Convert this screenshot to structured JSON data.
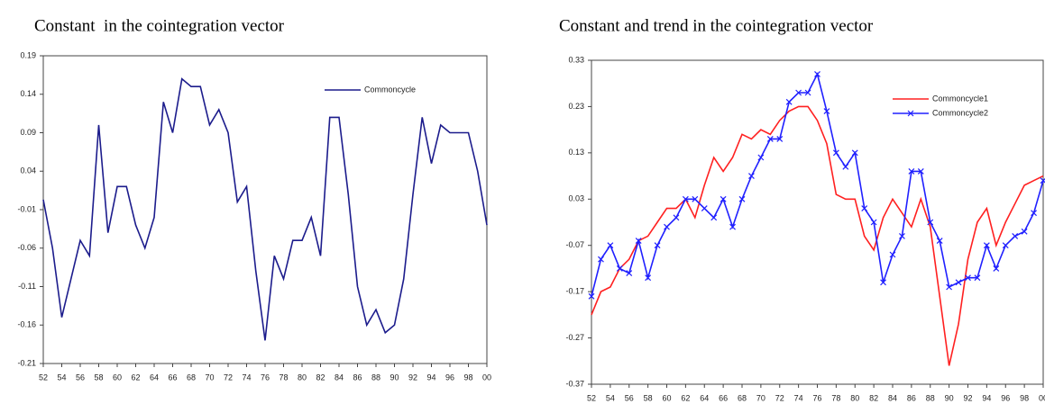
{
  "chart_data": [
    {
      "type": "line",
      "title": "Constant  in the cointegration vector",
      "x": [
        52,
        53,
        54,
        55,
        56,
        57,
        58,
        59,
        60,
        61,
        62,
        63,
        64,
        65,
        66,
        67,
        68,
        69,
        70,
        71,
        72,
        73,
        74,
        75,
        76,
        77,
        78,
        79,
        80,
        81,
        82,
        83,
        84,
        85,
        86,
        87,
        88,
        89,
        90,
        91,
        92,
        93,
        94,
        95,
        96,
        97,
        98,
        99,
        100
      ],
      "series": [
        {
          "name": "Commoncycle",
          "color": "#1c1c8c",
          "values": [
            0.003,
            -0.06,
            -0.15,
            -0.1,
            -0.05,
            -0.07,
            0.1,
            -0.04,
            0.02,
            0.02,
            -0.03,
            -0.06,
            -0.02,
            0.13,
            0.09,
            0.16,
            0.15,
            0.15,
            0.1,
            0.12,
            0.09,
            0.0,
            0.02,
            -0.09,
            -0.18,
            -0.07,
            -0.1,
            -0.05,
            -0.05,
            -0.02,
            -0.07,
            0.11,
            0.11,
            0.01,
            -0.11,
            -0.16,
            -0.14,
            -0.17,
            -0.16,
            -0.1,
            0.01,
            0.11,
            0.05,
            0.1,
            0.09,
            0.09,
            0.09,
            0.04,
            -0.03
          ]
        }
      ],
      "xlim": [
        52,
        100
      ],
      "xticks": [
        52,
        54,
        56,
        58,
        60,
        62,
        64,
        66,
        68,
        70,
        72,
        74,
        76,
        78,
        80,
        82,
        84,
        86,
        88,
        90,
        92,
        94,
        96,
        98,
        {
          "value": 100,
          "label": "00"
        }
      ],
      "ylim": [
        -0.21,
        0.19
      ],
      "yticks": [
        -0.21,
        -0.16,
        -0.11,
        -0.06,
        -0.01,
        0.04,
        0.09,
        0.14,
        0.19
      ],
      "legend": "upper right"
    },
    {
      "type": "line",
      "title": "Constant and trend in the cointegration vector",
      "x": [
        52,
        53,
        54,
        55,
        56,
        57,
        58,
        59,
        60,
        61,
        62,
        63,
        64,
        65,
        66,
        67,
        68,
        69,
        70,
        71,
        72,
        73,
        74,
        75,
        76,
        77,
        78,
        79,
        80,
        81,
        82,
        83,
        84,
        85,
        86,
        87,
        88,
        89,
        90,
        91,
        92,
        93,
        94,
        95,
        96,
        97,
        98,
        99,
        100
      ],
      "series": [
        {
          "name": "Commoncycle1",
          "color": "#ff2020",
          "values": [
            -0.22,
            -0.17,
            -0.16,
            -0.12,
            -0.1,
            -0.06,
            -0.05,
            -0.02,
            0.01,
            0.01,
            0.03,
            -0.01,
            0.06,
            0.12,
            0.09,
            0.12,
            0.17,
            0.16,
            0.18,
            0.17,
            0.2,
            0.22,
            0.23,
            0.23,
            0.2,
            0.15,
            0.04,
            0.03,
            0.03,
            -0.05,
            -0.08,
            -0.01,
            0.03,
            0.0,
            -0.03,
            0.03,
            -0.03,
            -0.18,
            -0.33,
            -0.24,
            -0.1,
            -0.02,
            0.01,
            -0.07,
            -0.02,
            0.02,
            0.06,
            0.07,
            0.08
          ]
        },
        {
          "name": "Commoncycle2",
          "color": "#2020ff",
          "marker": "x",
          "values": [
            -0.18,
            -0.1,
            -0.07,
            -0.12,
            -0.13,
            -0.06,
            -0.14,
            -0.07,
            -0.03,
            -0.01,
            0.03,
            0.03,
            0.01,
            -0.01,
            0.03,
            -0.03,
            0.03,
            0.08,
            0.12,
            0.16,
            0.16,
            0.24,
            0.26,
            0.26,
            0.3,
            0.22,
            0.13,
            0.1,
            0.13,
            0.01,
            -0.02,
            -0.15,
            -0.09,
            -0.05,
            0.09,
            0.09,
            -0.02,
            -0.06,
            -0.16,
            -0.15,
            -0.14,
            -0.14,
            -0.07,
            -0.12,
            -0.07,
            -0.05,
            -0.04,
            0.0,
            0.07
          ]
        }
      ],
      "xlim": [
        52,
        100
      ],
      "xticks": [
        52,
        54,
        56,
        58,
        60,
        62,
        64,
        66,
        68,
        70,
        72,
        74,
        76,
        78,
        80,
        82,
        84,
        86,
        88,
        90,
        92,
        94,
        96,
        98,
        {
          "value": 100,
          "label": "00"
        }
      ],
      "ylim": [
        -0.37,
        0.33
      ],
      "yticks": [
        -0.37,
        -0.27,
        -0.17,
        -0.07,
        0.03,
        0.13,
        0.23,
        0.33
      ],
      "legend": "upper right"
    }
  ]
}
